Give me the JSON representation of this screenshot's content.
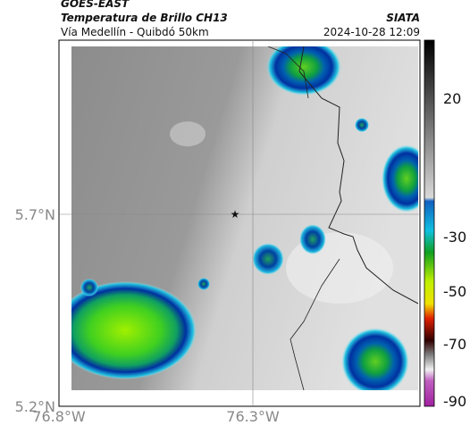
{
  "header": {
    "agency": "GOES-EAST",
    "product": "Temperatura de Brillo CH13",
    "location": "Vía Medellín - Quibdó 50km",
    "source": "SIATA",
    "datetime": "2024-10-28 12:09"
  },
  "axes": {
    "x_ticks": [
      "76.8°W",
      "76.3°W"
    ],
    "y_ticks": [
      "5.7°N",
      "5.2°N"
    ]
  },
  "colorbar": {
    "ticks": [
      "20",
      "-30",
      "-50",
      "-70",
      "-90"
    ]
  }
}
